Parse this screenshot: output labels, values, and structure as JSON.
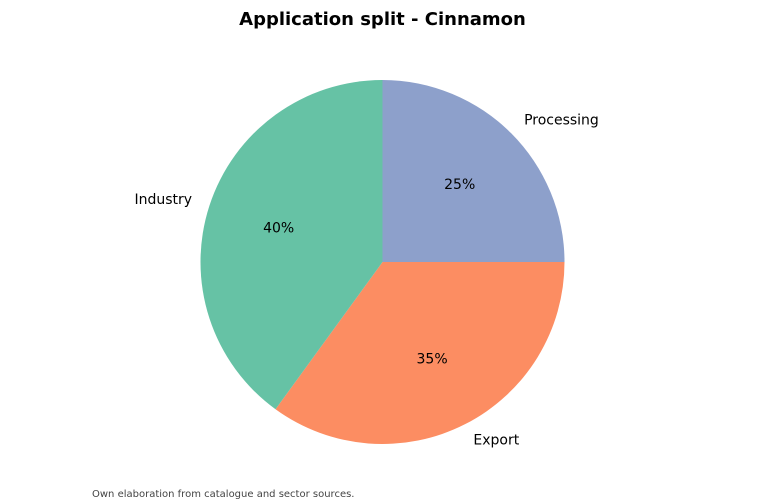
{
  "chart_data": {
    "type": "pie",
    "title": "Application split - Cinnamon",
    "slices": [
      {
        "label": "Processing",
        "value": 25,
        "pct_label": "25%",
        "color": "#8da0cb"
      },
      {
        "label": "Export",
        "value": 35,
        "pct_label": "35%",
        "color": "#fc8d62"
      },
      {
        "label": "Industry",
        "value": 40,
        "pct_label": "40%",
        "color": "#66c2a5"
      }
    ],
    "start_angle": "90 degrees (top)",
    "direction": "clockwise",
    "legend": "none"
  },
  "footnote": "Own elaboration from catalogue and sector sources."
}
